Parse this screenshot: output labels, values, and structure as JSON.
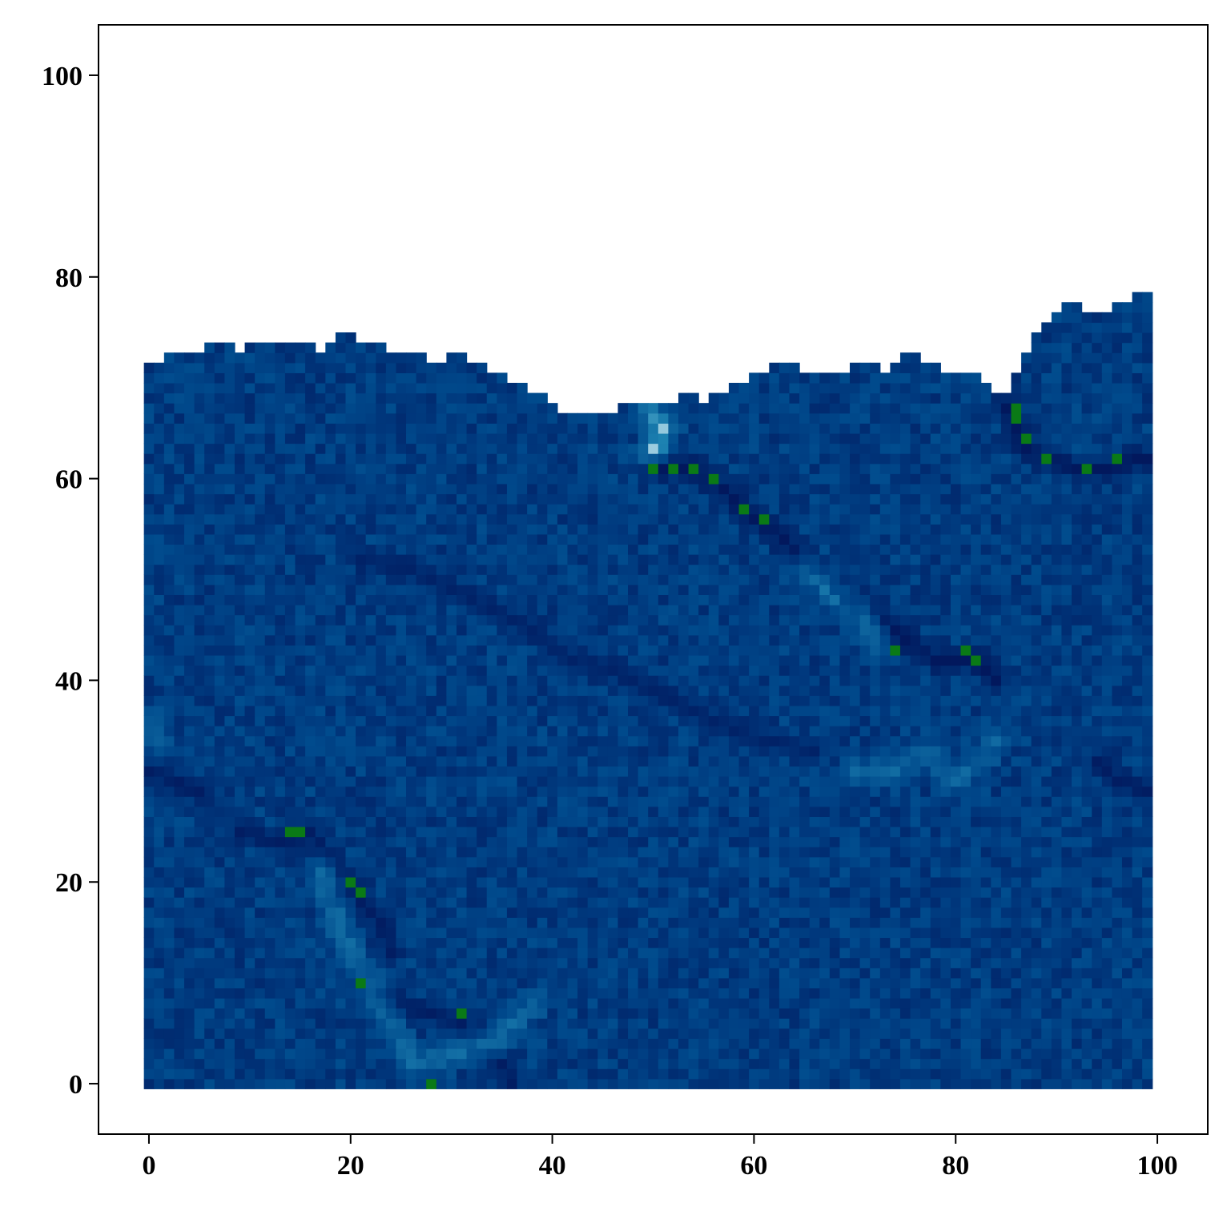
{
  "chart_data": {
    "type": "heatmap",
    "title": "",
    "xlabel": "",
    "ylabel": "",
    "xlim": [
      -5,
      105
    ],
    "ylim": [
      -5,
      105
    ],
    "grid": false,
    "legend": "none",
    "xticks": [
      0,
      20,
      40,
      60,
      80,
      100
    ],
    "yticks": [
      0,
      20,
      40,
      60,
      80,
      100
    ],
    "grid_size": [
      100,
      100
    ],
    "colormap": [
      "#02155a",
      "#00357a",
      "#004a8c",
      "#1f86b4",
      "#d9f0f5",
      "#0a7a16"
    ],
    "background_value": 0.25,
    "top_edge": [
      [
        0,
        71
      ],
      [
        4,
        72
      ],
      [
        7,
        73
      ],
      [
        9,
        72
      ],
      [
        11,
        73
      ],
      [
        15,
        73
      ],
      [
        17,
        72
      ],
      [
        19,
        74
      ],
      [
        21,
        73
      ],
      [
        25,
        72
      ],
      [
        29,
        71
      ],
      [
        31,
        72
      ],
      [
        32,
        71
      ],
      [
        34,
        70
      ],
      [
        36,
        69
      ],
      [
        39,
        68
      ],
      [
        40,
        67
      ],
      [
        41,
        66
      ],
      [
        43,
        66
      ],
      [
        46,
        66
      ],
      [
        47,
        67
      ],
      [
        52,
        67
      ],
      [
        53,
        68
      ],
      [
        55,
        67
      ],
      [
        57,
        68
      ],
      [
        59,
        69
      ],
      [
        61,
        70
      ],
      [
        63,
        71
      ],
      [
        65,
        70
      ],
      [
        68,
        70
      ],
      [
        71,
        71
      ],
      [
        73,
        70
      ],
      [
        75,
        72
      ],
      [
        77,
        71
      ],
      [
        79,
        70
      ],
      [
        82,
        70
      ],
      [
        83,
        69
      ],
      [
        84,
        68
      ],
      [
        85,
        68
      ],
      [
        86,
        70
      ],
      [
        87,
        72
      ],
      [
        88,
        74
      ],
      [
        90,
        76
      ],
      [
        92,
        77
      ],
      [
        93,
        76
      ],
      [
        95,
        76
      ],
      [
        97,
        77
      ],
      [
        99,
        78
      ]
    ],
    "features": [
      {
        "kind": "ridge",
        "points": [
          [
            50,
            61
          ],
          [
            54,
            61
          ],
          [
            57,
            59
          ],
          [
            60,
            56
          ],
          [
            63,
            54
          ],
          [
            65,
            51
          ],
          [
            68,
            48
          ],
          [
            72,
            47
          ],
          [
            75,
            44
          ],
          [
            78,
            42
          ],
          [
            82,
            42
          ],
          [
            84,
            40
          ]
        ],
        "value": 0.02,
        "accent": [
          [
            50,
            61
          ],
          [
            52,
            61
          ],
          [
            54,
            61
          ],
          [
            56,
            60
          ],
          [
            59,
            57
          ],
          [
            61,
            56
          ],
          [
            74,
            43
          ],
          [
            81,
            43
          ],
          [
            82,
            42
          ]
        ]
      },
      {
        "kind": "ridge",
        "points": [
          [
            85,
            67
          ],
          [
            86,
            65
          ],
          [
            87,
            63
          ],
          [
            89,
            62
          ],
          [
            92,
            61
          ],
          [
            95,
            61
          ],
          [
            98,
            62
          ],
          [
            99,
            62
          ]
        ],
        "value": 0.02,
        "accent": [
          [
            86,
            67
          ],
          [
            86,
            66
          ],
          [
            87,
            64
          ],
          [
            89,
            62
          ],
          [
            93,
            61
          ],
          [
            96,
            62
          ]
        ]
      },
      {
        "kind": "ridge",
        "points": [
          [
            9,
            25
          ],
          [
            13,
            24
          ],
          [
            16,
            25
          ],
          [
            19,
            21
          ],
          [
            21,
            18
          ],
          [
            23,
            16
          ],
          [
            24,
            13
          ]
        ],
        "value": 0.05,
        "accent": [
          [
            14,
            25
          ],
          [
            15,
            25
          ],
          [
            20,
            20
          ],
          [
            21,
            19
          ]
        ]
      },
      {
        "kind": "ridge",
        "points": [
          [
            20,
            11
          ],
          [
            22,
            9
          ],
          [
            25,
            8
          ],
          [
            28,
            7
          ],
          [
            31,
            6
          ],
          [
            33,
            3
          ],
          [
            35,
            2
          ],
          [
            36,
            0
          ]
        ],
        "value": 0.05,
        "accent": [
          [
            21,
            10
          ],
          [
            31,
            7
          ],
          [
            28,
            0
          ]
        ]
      },
      {
        "kind": "ridge",
        "points": [
          [
            21,
            52
          ],
          [
            26,
            51
          ],
          [
            30,
            49
          ],
          [
            34,
            47
          ],
          [
            38,
            45
          ],
          [
            42,
            42
          ],
          [
            46,
            41
          ],
          [
            50,
            39
          ],
          [
            54,
            37
          ],
          [
            58,
            35
          ],
          [
            62,
            34
          ],
          [
            66,
            33
          ]
        ],
        "value": 0.08,
        "accent": []
      },
      {
        "kind": "ridge",
        "points": [
          [
            0,
            31
          ],
          [
            3,
            30
          ],
          [
            5,
            29
          ]
        ],
        "value": 0.05,
        "accent": []
      },
      {
        "kind": "ridge",
        "points": [
          [
            94,
            32
          ],
          [
            96,
            30
          ],
          [
            99,
            29
          ]
        ],
        "value": 0.05,
        "accent": []
      },
      {
        "kind": "bright",
        "points": [
          [
            50,
            66
          ],
          [
            51,
            65
          ],
          [
            50,
            63
          ]
        ],
        "value": 0.9
      },
      {
        "kind": "bright",
        "points": [
          [
            65,
            51
          ],
          [
            68,
            48
          ],
          [
            71,
            46
          ],
          [
            72,
            43
          ]
        ],
        "value": 0.6
      },
      {
        "kind": "bright",
        "points": [
          [
            70,
            31
          ],
          [
            74,
            31
          ],
          [
            77,
            33
          ],
          [
            80,
            30
          ],
          [
            84,
            34
          ]
        ],
        "value": 0.55
      },
      {
        "kind": "bright",
        "points": [
          [
            17,
            21
          ],
          [
            20,
            13
          ],
          [
            26,
            2
          ],
          [
            30,
            3
          ],
          [
            34,
            4
          ],
          [
            38,
            8
          ]
        ],
        "value": 0.6
      },
      {
        "kind": "bright",
        "points": [
          [
            0,
            36
          ],
          [
            1,
            34
          ]
        ],
        "value": 0.5
      }
    ],
    "noise_amplitude": 0.12
  }
}
